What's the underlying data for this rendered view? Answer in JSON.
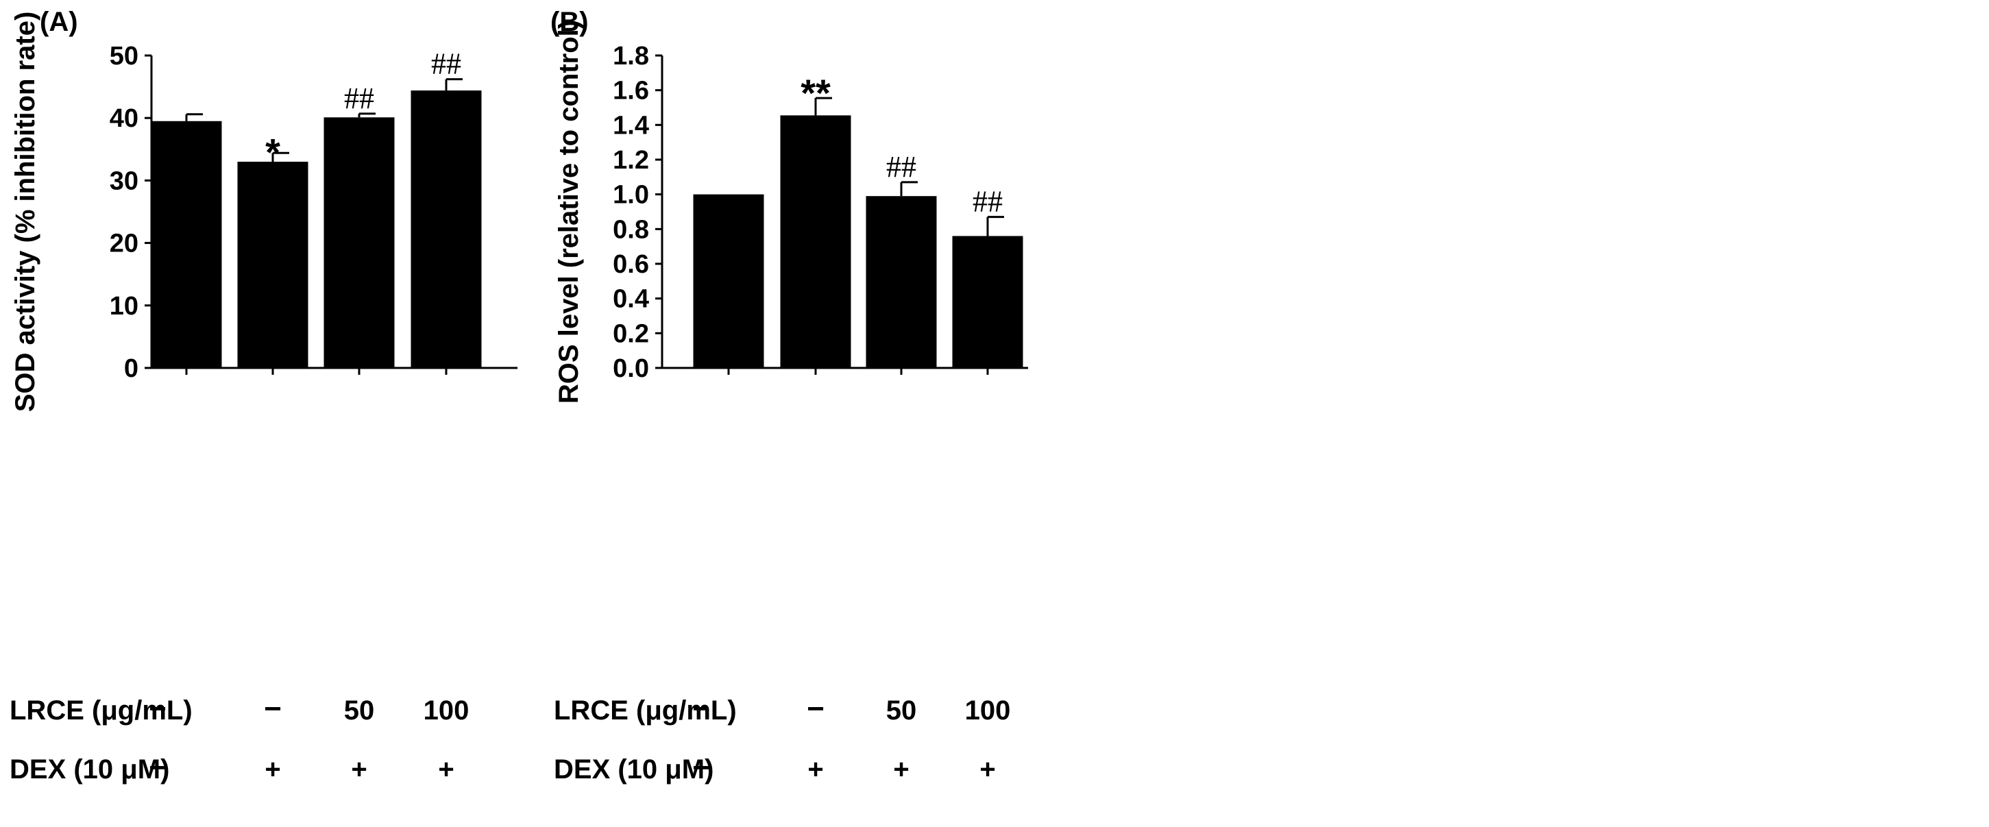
{
  "chart_data": [
    {
      "panel": "(A)",
      "type": "bar",
      "ylabel": "SOD activity (% inhibition rate)",
      "ylim": [
        0,
        50
      ],
      "ytick_labels": [
        "0",
        "10",
        "20",
        "30",
        "40",
        "50"
      ],
      "ytick_values": [
        0,
        10,
        20,
        30,
        40,
        50
      ],
      "values": [
        39.5,
        33.0,
        40.1,
        44.4
      ],
      "errors": [
        1.1,
        1.4,
        0.6,
        1.8
      ],
      "annotations": [
        "",
        "*",
        "##",
        "##"
      ],
      "treatment_rows": [
        {
          "label": "LRCE (μg/mL)",
          "values": [
            "−",
            "−",
            "50",
            "100"
          ]
        },
        {
          "label": "DEX (10 μM)",
          "values": [
            "−",
            "+",
            "+",
            "+"
          ]
        }
      ],
      "bar_color": "#000000"
    },
    {
      "panel": "(B)",
      "type": "bar",
      "ylabel": "ROS level (relative to control)",
      "ylim": [
        0,
        1.8
      ],
      "ytick_labels": [
        "0.0",
        "0.2",
        "0.4",
        "0.6",
        "0.8",
        "1.0",
        "1.2",
        "1.4",
        "1.6",
        "1.8"
      ],
      "ytick_values": [
        0,
        0.2,
        0.4,
        0.6,
        0.8,
        1.0,
        1.2,
        1.4,
        1.6,
        1.8
      ],
      "values": [
        1.0,
        1.455,
        0.99,
        0.76
      ],
      "errors": [
        0,
        0.1,
        0.08,
        0.11
      ],
      "annotations": [
        "",
        "**",
        "##",
        "##"
      ],
      "treatment_rows": [
        {
          "label": "LRCE (μg/mL)",
          "values": [
            "−",
            "−",
            "50",
            "100"
          ]
        },
        {
          "label": "DEX (10 μM)",
          "values": [
            "−",
            "+",
            "+",
            "+"
          ]
        }
      ],
      "bar_color": "#000000"
    }
  ]
}
